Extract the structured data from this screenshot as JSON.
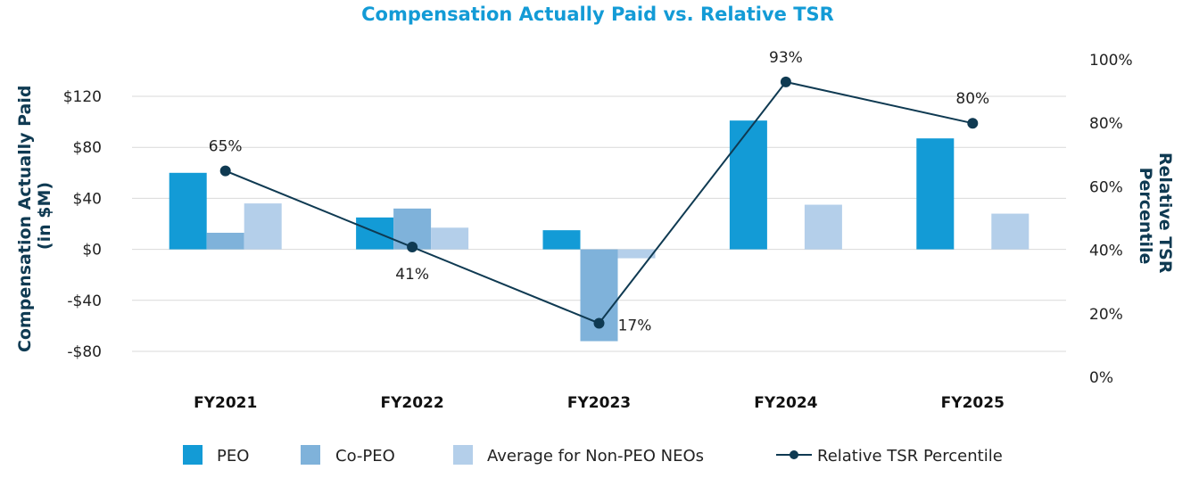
{
  "chart_data": {
    "type": "bar",
    "title": "Compensation Actually Paid vs. Relative TSR",
    "categories": [
      "FY2021",
      "FY2022",
      "FY2023",
      "FY2024",
      "FY2025"
    ],
    "ylabel": [
      "Compensation Actually Paid",
      "(in $M)"
    ],
    "y2label": [
      "Relative TSR",
      "Percentile"
    ],
    "ylim": [
      -80,
      120
    ],
    "yticks": [
      -80,
      -40,
      0,
      40,
      80,
      120
    ],
    "ytick_labels": [
      "-$80",
      "-$40",
      "$0",
      "$40",
      "$80",
      "$120"
    ],
    "y2lim": [
      0,
      100
    ],
    "y2ticks": [
      0,
      20,
      40,
      60,
      80,
      100
    ],
    "y2tick_labels": [
      "0%",
      "20%",
      "40%",
      "60%",
      "80%",
      "100%"
    ],
    "grid": true,
    "legend_position": "bottom",
    "series": [
      {
        "name": "PEO",
        "color": "#139bd6",
        "values": [
          60,
          25,
          15,
          101,
          87
        ]
      },
      {
        "name": "Co-PEO",
        "color": "#7fb2da",
        "values": [
          13,
          32,
          -72,
          null,
          null
        ]
      },
      {
        "name": "Average for Non-PEO NEOs",
        "color": "#b4cfea",
        "values": [
          36,
          17,
          -7,
          35,
          28
        ]
      }
    ],
    "line_series": {
      "name": "Relative TSR Percentile",
      "color": "#0f3a52",
      "values": [
        65,
        41,
        17,
        93,
        80
      ],
      "labels": [
        "65%",
        "41%",
        "17%",
        "93%",
        "80%"
      ]
    }
  }
}
